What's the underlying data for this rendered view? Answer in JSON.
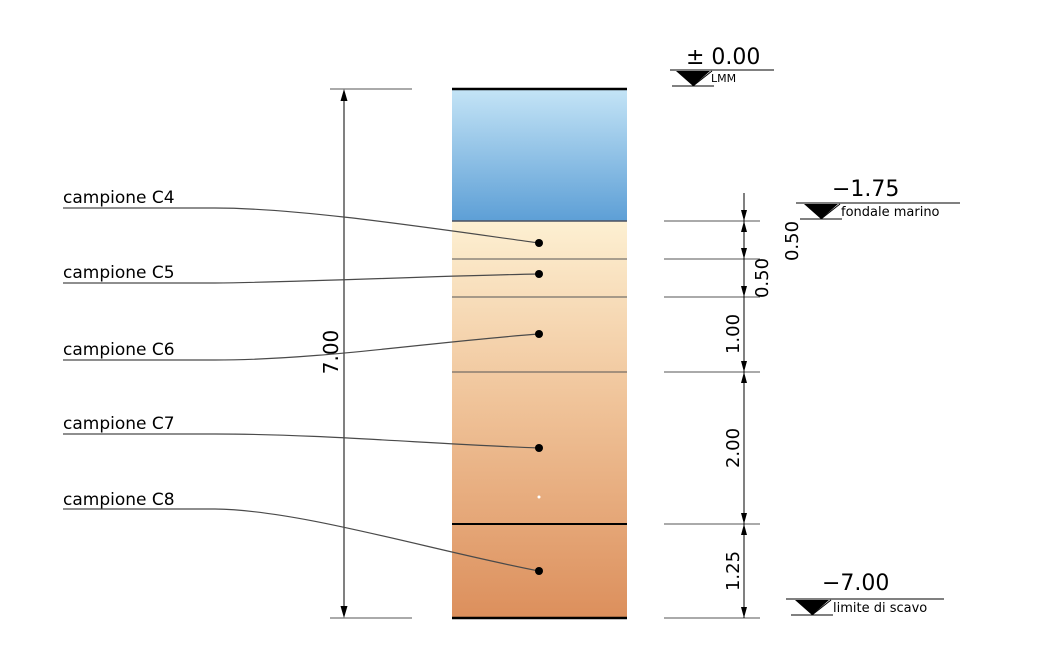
{
  "samples": [
    {
      "label": "campione C4"
    },
    {
      "label": "campione C5"
    },
    {
      "label": "campione C6"
    },
    {
      "label": "campione C7"
    },
    {
      "label": "campione C8"
    }
  ],
  "total_depth_label": "7.00",
  "layer_thickness_labels": [
    "0.50",
    "0.50",
    "1.00",
    "2.00",
    "1.25"
  ],
  "levels": [
    {
      "value": "± 0.00",
      "description": "LMM"
    },
    {
      "value": "−1.75",
      "description": "fondale marino"
    },
    {
      "value": "−7.00",
      "description": "limite di scavo"
    }
  ],
  "colors": {
    "water_top": "#c4e4f6",
    "water_bottom": "#5d9fd6",
    "sediment_top": "#fdf0d2",
    "sediment_bottom": "#dc8f5c"
  }
}
